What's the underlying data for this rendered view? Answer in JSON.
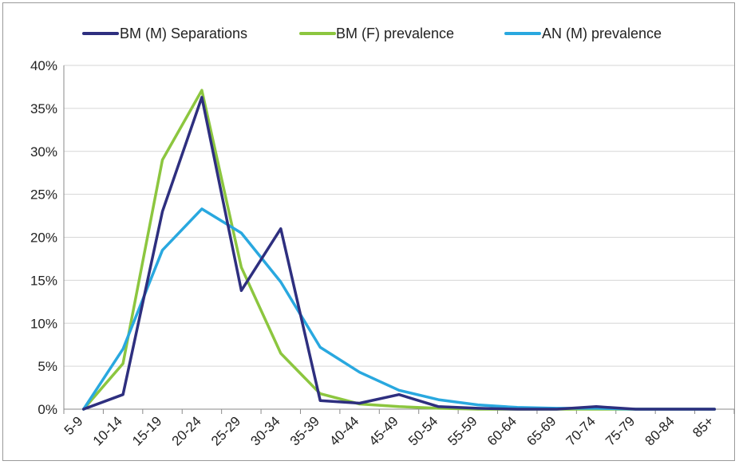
{
  "chart_data": {
    "type": "line",
    "title": "",
    "xlabel": "",
    "ylabel": "",
    "categories": [
      "5-9",
      "10-14",
      "15-19",
      "20-24",
      "25-29",
      "30-34",
      "35-39",
      "40-44",
      "45-49",
      "50-54",
      "55-59",
      "60-64",
      "65-69",
      "70-74",
      "75-79",
      "80-84",
      "85+"
    ],
    "y_ticks": [
      "0%",
      "5%",
      "10%",
      "15%",
      "20%",
      "25%",
      "30%",
      "35%",
      "40%"
    ],
    "ylim": [
      0,
      40
    ],
    "y_unit": "%",
    "grid": "horizontal",
    "legend_position": "top",
    "series": [
      {
        "name": "BM (M) Separations",
        "color": "#2e2f7f",
        "values": [
          0,
          1.7,
          23.0,
          36.3,
          13.8,
          21.0,
          1.0,
          0.7,
          1.7,
          0.3,
          0.1,
          0.0,
          0.0,
          0.3,
          0.0,
          0.0,
          0.0
        ]
      },
      {
        "name": "BM (F)  prevalence",
        "color": "#8cc63f",
        "values": [
          0,
          5.3,
          29.0,
          37.1,
          16.5,
          6.5,
          1.8,
          0.6,
          0.3,
          0.1,
          0.0,
          0.0,
          0.0,
          0.0,
          0.0,
          0.0,
          0.0
        ]
      },
      {
        "name": "AN (M) prevalence",
        "color": "#29a8df",
        "values": [
          0,
          7.0,
          18.5,
          23.3,
          20.5,
          14.8,
          7.2,
          4.3,
          2.2,
          1.1,
          0.5,
          0.2,
          0.1,
          0.1,
          0.0,
          0.0,
          0.0
        ]
      }
    ]
  }
}
